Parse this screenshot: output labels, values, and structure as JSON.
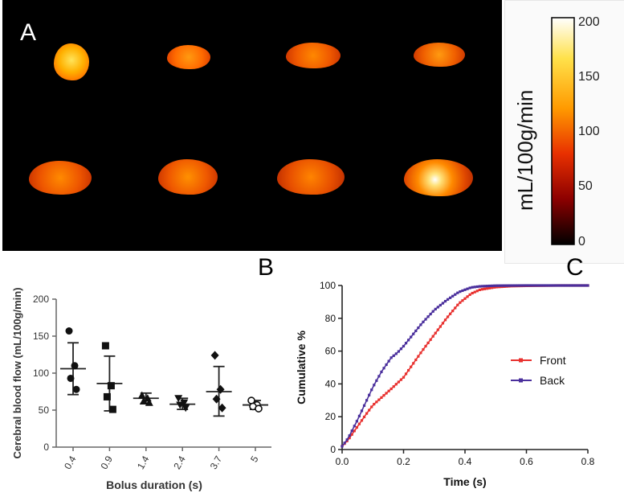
{
  "panels": {
    "a_label": "A",
    "b_label": "B",
    "c_label": "C"
  },
  "colorbar": {
    "label": "mL/100g/min",
    "ticks": [
      "200",
      "150",
      "100",
      "50",
      "0"
    ],
    "colors": [
      "#ffffff",
      "#ffe14a",
      "#ff9a00",
      "#e83000",
      "#8c0000",
      "#000000"
    ]
  },
  "chart_data": [
    {
      "type": "scatter",
      "title": "",
      "xlabel": "Bolus duration (s)",
      "ylabel": "Cerebral blood flow (mL/100g/min)",
      "ylim": [
        0,
        200
      ],
      "yticks": [
        "0",
        "50",
        "100",
        "150",
        "200"
      ],
      "categories": [
        "0.4",
        "0.9",
        "1.4",
        "2.4",
        "3.7",
        "5"
      ],
      "groups": [
        {
          "category": "0.4",
          "marker": "circle",
          "points": [
            157,
            110,
            93,
            78
          ],
          "mean": 106,
          "sd_low": 71,
          "sd_high": 141
        },
        {
          "category": "0.9",
          "marker": "square",
          "points": [
            137,
            83,
            68,
            51
          ],
          "mean": 86,
          "sd_low": 49,
          "sd_high": 123
        },
        {
          "category": "1.4",
          "marker": "triangle-up",
          "points": [
            70,
            66,
            62,
            60
          ],
          "mean": 66,
          "sd_low": 59,
          "sd_high": 73
        },
        {
          "category": "2.4",
          "marker": "triangle-down",
          "points": [
            66,
            60,
            57,
            53
          ],
          "mean": 58,
          "sd_low": 51,
          "sd_high": 66
        },
        {
          "category": "3.7",
          "marker": "diamond",
          "points": [
            124,
            78,
            65,
            53
          ],
          "mean": 75,
          "sd_low": 42,
          "sd_high": 109
        },
        {
          "category": "5",
          "marker": "open-circle",
          "points": [
            63,
            57,
            55,
            52
          ],
          "mean": 57,
          "sd_low": 51,
          "sd_high": 63
        }
      ]
    },
    {
      "type": "line",
      "title": "",
      "xlabel": "Time (s)",
      "ylabel": "Cumulative %",
      "xlim": [
        0,
        0.8
      ],
      "ylim": [
        0,
        100
      ],
      "xticks": [
        "0.0",
        "0.2",
        "0.4",
        "0.6",
        "0.8"
      ],
      "yticks": [
        "0",
        "20",
        "40",
        "60",
        "80",
        "100"
      ],
      "legend_position": "right",
      "series": [
        {
          "name": "Front",
          "color": "#e8312f",
          "x": [
            0.0,
            0.02,
            0.05,
            0.08,
            0.1,
            0.13,
            0.16,
            0.2,
            0.23,
            0.26,
            0.3,
            0.34,
            0.38,
            0.42,
            0.45,
            0.5,
            0.55,
            0.6,
            0.7,
            0.8
          ],
          "y": [
            2,
            6,
            14,
            22,
            27,
            32,
            37,
            44,
            52,
            60,
            70,
            80,
            89,
            95,
            97.5,
            99,
            99.6,
            99.8,
            100,
            100
          ]
        },
        {
          "name": "Back",
          "color": "#4a2f9c",
          "x": [
            0.0,
            0.02,
            0.05,
            0.08,
            0.1,
            0.13,
            0.16,
            0.18,
            0.2,
            0.23,
            0.26,
            0.3,
            0.34,
            0.38,
            0.42,
            0.45,
            0.5,
            0.6,
            0.7,
            0.8
          ],
          "y": [
            2,
            7,
            18,
            30,
            38,
            48,
            56,
            59,
            63,
            70,
            77,
            85,
            91,
            96,
            98.8,
            99.5,
            99.9,
            100,
            100,
            100
          ]
        }
      ]
    }
  ]
}
